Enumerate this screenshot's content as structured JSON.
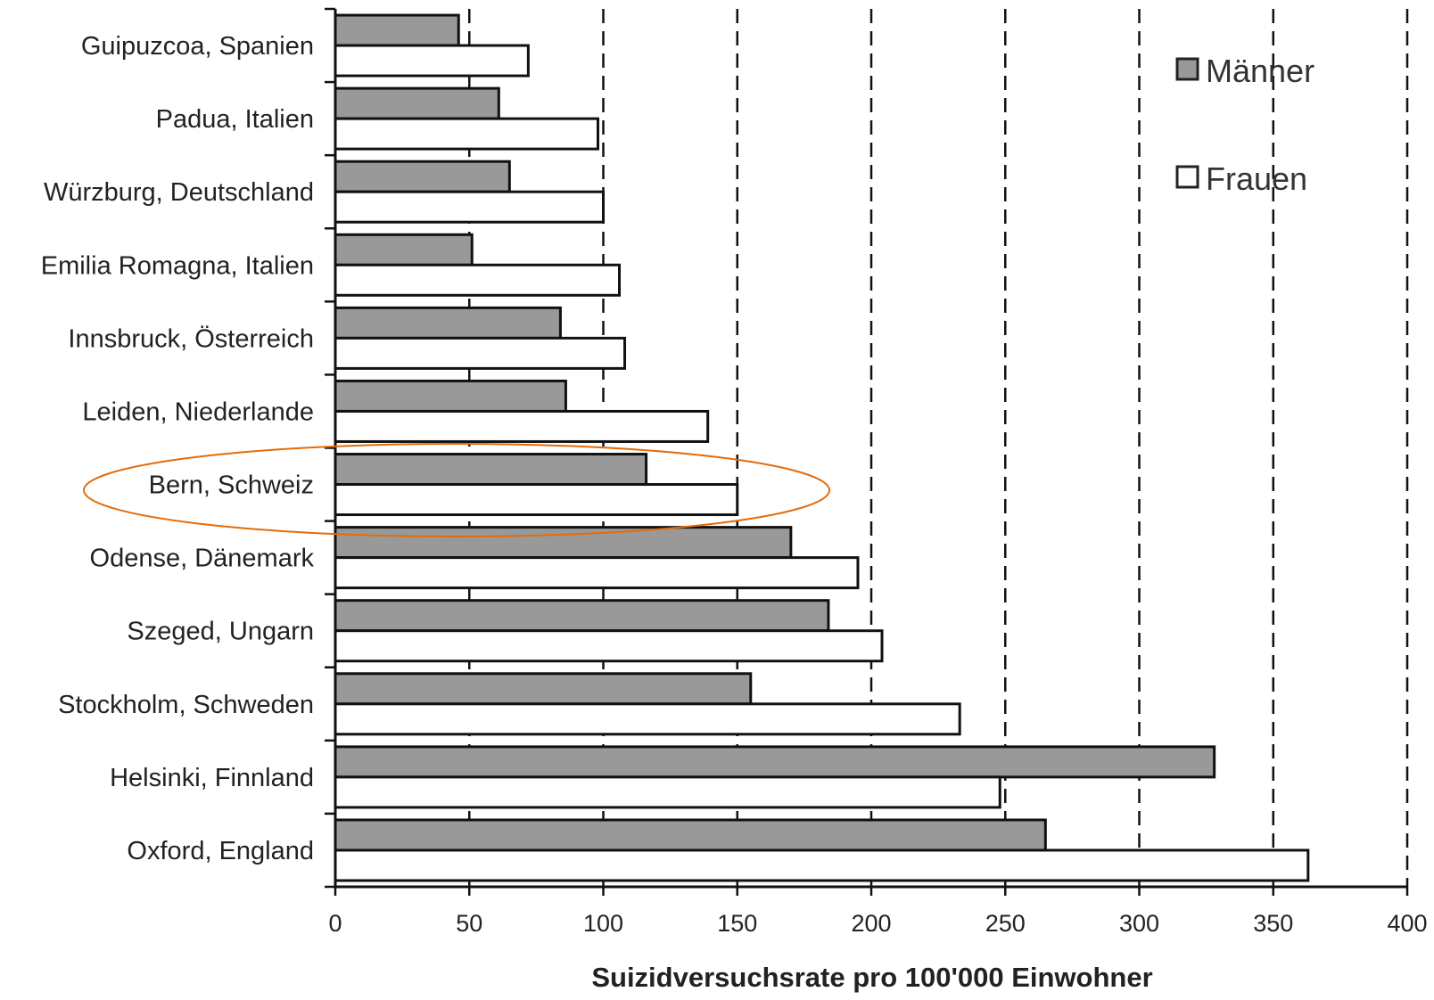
{
  "chart_data": {
    "type": "bar",
    "orientation": "horizontal",
    "categories": [
      "Guipuzcoa, Spanien",
      "Padua, Italien",
      "Würzburg, Deutschland",
      "Emilia Romagna, Italien",
      "Innsbruck, Österreich",
      "Leiden, Niederlande",
      "Bern, Schweiz",
      "Odense, Dänemark",
      "Szeged, Ungarn",
      "Stockholm, Schweden",
      "Helsinki, Finnland",
      "Oxford, England"
    ],
    "series": [
      {
        "name": "Männer",
        "color": "#999999",
        "values": [
          46,
          61,
          65,
          51,
          84,
          86,
          116,
          170,
          184,
          155,
          328,
          265
        ]
      },
      {
        "name": "Frauen",
        "color": "#ffffff",
        "values": [
          72,
          98,
          100,
          106,
          108,
          139,
          150,
          195,
          204,
          233,
          248,
          363
        ]
      }
    ],
    "xlabel": "Suizidversuchsrate pro 100'000 Einwohner",
    "ylabel": "",
    "title": "",
    "xlim": [
      0,
      400
    ],
    "xticks": [
      "0",
      "50",
      "100",
      "150",
      "200",
      "250",
      "300",
      "350",
      "400"
    ],
    "grid": "vertical dashed",
    "legend_position": "top-right",
    "highlight": {
      "category": "Bern, Schweiz",
      "shape": "ellipse",
      "color": "#e36c0a"
    }
  }
}
